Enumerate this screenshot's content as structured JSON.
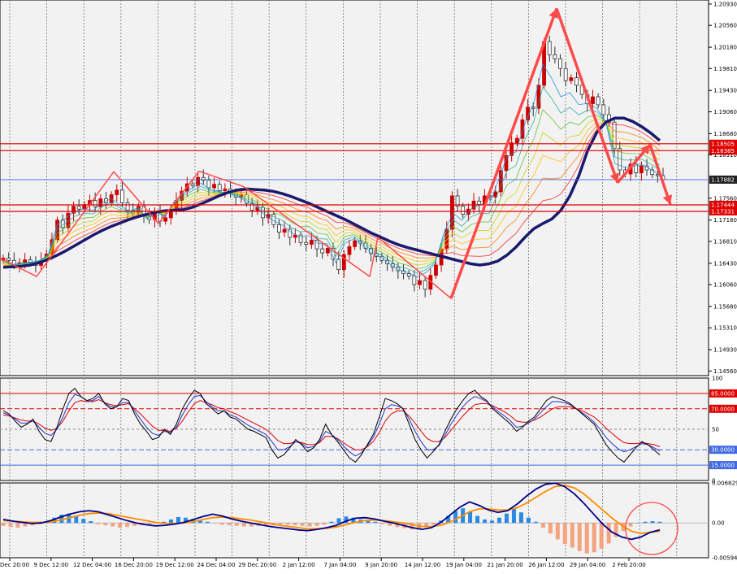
{
  "colors": {
    "background": "#f2f2f2",
    "candle_up": "#cc0000",
    "candle_down": "#333333",
    "ribbon_slow": "#1a1a6e",
    "annotation": "#ff4a4a",
    "level_line": "#e00000",
    "price_line": "#4169e1",
    "stoch_main": "#000000",
    "stoch_red": "#e00000",
    "stoch_blue": "#2233cc",
    "macd_pos": "#2a8ae2",
    "macd_neg": "#f4a37f",
    "macd_main": "#00008b",
    "macd_signal": "#ff8c00"
  },
  "chart_data": [
    {
      "type": "candlestick",
      "panel": "price",
      "y_ticks": [
        "1.20930",
        "1.20560",
        "1.20180",
        "1.19810",
        "1.19430",
        "1.19060",
        "1.18680",
        "1.18310",
        "1.17560",
        "1.17180",
        "1.16810",
        "1.16430",
        "1.16060",
        "1.15680",
        "1.15310",
        "1.14930",
        "1.14560"
      ],
      "ylim": [
        1.1448,
        1.21
      ],
      "level_labels": [
        {
          "value": 1.18505,
          "label": "1.18505",
          "color": "red"
        },
        {
          "value": 1.18385,
          "label": "1.18385",
          "color": "red"
        },
        {
          "value": 1.17882,
          "label": "1.17882",
          "color": "dark"
        },
        {
          "value": 1.17444,
          "label": "1.17444",
          "color": "red"
        },
        {
          "value": 1.17331,
          "label": "1.17331",
          "color": "red"
        }
      ],
      "close_path": [
        1.1652,
        1.1648,
        1.1641,
        1.1644,
        1.1649,
        1.1645,
        1.1639,
        1.1648,
        1.1659,
        1.1684,
        1.1718,
        1.1705,
        1.173,
        1.1742,
        1.1737,
        1.1745,
        1.1752,
        1.1741,
        1.1755,
        1.1748,
        1.1762,
        1.177,
        1.1748,
        1.1735,
        1.173,
        1.1742,
        1.1725,
        1.1719,
        1.1732,
        1.1716,
        1.1722,
        1.1735,
        1.1752,
        1.1768,
        1.1781,
        1.1778,
        1.1792,
        1.1787,
        1.1774,
        1.178,
        1.1769,
        1.1772,
        1.1765,
        1.1758,
        1.1762,
        1.1747,
        1.1735,
        1.174,
        1.1722,
        1.1728,
        1.171,
        1.1697,
        1.1702,
        1.1688,
        1.1692,
        1.1679,
        1.1676,
        1.1683,
        1.1668,
        1.1661,
        1.1669,
        1.165,
        1.1632,
        1.1658,
        1.1672,
        1.1682,
        1.1678,
        1.1669,
        1.166,
        1.1655,
        1.1648,
        1.1642,
        1.1636,
        1.163,
        1.1625,
        1.1621,
        1.1606,
        1.1613,
        1.1598,
        1.1622,
        1.164,
        1.1668,
        1.1702,
        1.176,
        1.1742,
        1.1728,
        1.1737,
        1.1751,
        1.1745,
        1.176,
        1.1758,
        1.1767,
        1.1804,
        1.183,
        1.1852,
        1.186,
        1.1892,
        1.1914,
        1.1912,
        1.1952,
        1.2028,
        1.2005,
        1.1998,
        1.1981,
        1.196,
        1.1965,
        1.1952,
        1.1936,
        1.192,
        1.1932,
        1.1918,
        1.1901,
        1.1888,
        1.1842,
        1.1805,
        1.1798,
        1.1815,
        1.18,
        1.1812,
        1.1805,
        1.1797,
        1.1795,
        1.1788
      ],
      "slow_ma": [
        1.1636,
        1.1637,
        1.1638,
        1.164,
        1.1644,
        1.165,
        1.1657,
        1.1665,
        1.1674,
        1.1683,
        1.1692,
        1.17,
        1.1707,
        1.1713,
        1.1719,
        1.1724,
        1.1728,
        1.1732,
        1.1734,
        1.1735,
        1.1736,
        1.174,
        1.1746,
        1.1753,
        1.176,
        1.1766,
        1.177,
        1.1772,
        1.1771,
        1.177,
        1.1768,
        1.1764,
        1.1759,
        1.1753,
        1.1747,
        1.174,
        1.1733,
        1.1726,
        1.1719,
        1.1711,
        1.1703,
        1.1695,
        1.1688,
        1.1681,
        1.1675,
        1.167,
        1.1666,
        1.1662,
        1.1658,
        1.1654,
        1.165,
        1.1646,
        1.1642,
        1.164,
        1.1642,
        1.1647,
        1.1657,
        1.1671,
        1.1688,
        1.1703,
        1.1712,
        1.172,
        1.1735,
        1.176,
        1.1795,
        1.184,
        1.187,
        1.1888,
        1.1895,
        1.1895,
        1.1889,
        1.188,
        1.1869,
        1.1856
      ],
      "annotation_zigzag_1": [
        [
          0,
          1.1652
        ],
        [
          45,
          1.162
        ],
        [
          140,
          1.1802
        ],
        [
          195,
          1.1712
        ],
        [
          245,
          1.1803
        ],
        [
          300,
          1.1776
        ],
        [
          455,
          1.162
        ],
        [
          465,
          1.1688
        ],
        [
          555,
          1.1582
        ],
        [
          685,
          1.2085
        ],
        [
          760,
          1.1783
        ],
        [
          800,
          1.1849
        ],
        [
          825,
          1.1745
        ]
      ]
    },
    {
      "type": "line",
      "panel": "stochastic",
      "y_ticks": [
        "100",
        "85.0000",
        "70.0000",
        "50",
        "30.0000",
        "15.0000",
        "0"
      ],
      "levels": {
        "high": 85,
        "upper": 70,
        "mid": 50,
        "lower": 30,
        "low": 15
      },
      "main": [
        68,
        65,
        58,
        52,
        55,
        60,
        48,
        40,
        38,
        52,
        70,
        85,
        90,
        82,
        78,
        80,
        85,
        75,
        70,
        72,
        80,
        78,
        65,
        55,
        48,
        40,
        42,
        50,
        45,
        55,
        70,
        80,
        88,
        85,
        75,
        70,
        65,
        68,
        62,
        60,
        55,
        50,
        48,
        45,
        42,
        30,
        22,
        25,
        32,
        40,
        35,
        28,
        32,
        40,
        55,
        45,
        38,
        30,
        22,
        18,
        25,
        35,
        45,
        62,
        80,
        78,
        75,
        70,
        55,
        40,
        30,
        22,
        28,
        35,
        48,
        60,
        70,
        78,
        85,
        88,
        82,
        78,
        70,
        65,
        60,
        55,
        48,
        52,
        58,
        62,
        70,
        78,
        82,
        80,
        78,
        75,
        70,
        65,
        60,
        55,
        45,
        35,
        28,
        22,
        18,
        25,
        32,
        38,
        35,
        30,
        25
      ],
      "blue": [
        66,
        64,
        60,
        56,
        56,
        58,
        52,
        46,
        44,
        50,
        62,
        76,
        84,
        82,
        78,
        78,
        82,
        76,
        72,
        72,
        76,
        76,
        68,
        60,
        52,
        46,
        44,
        48,
        47,
        52,
        64,
        74,
        82,
        83,
        77,
        72,
        68,
        68,
        64,
        62,
        58,
        54,
        51,
        48,
        45,
        38,
        30,
        30,
        33,
        38,
        36,
        32,
        33,
        38,
        48,
        45,
        40,
        34,
        28,
        24,
        27,
        34,
        42,
        55,
        70,
        74,
        73,
        70,
        60,
        48,
        38,
        30,
        30,
        34,
        44,
        55,
        64,
        72,
        78,
        82,
        80,
        77,
        72,
        67,
        63,
        58,
        52,
        53,
        56,
        60,
        66,
        72,
        77,
        77,
        76,
        74,
        70,
        66,
        62,
        57,
        50,
        42,
        36,
        31,
        28,
        30,
        33,
        36,
        35,
        32,
        29
      ],
      "red": [
        64,
        63,
        61,
        59,
        58,
        58,
        55,
        51,
        49,
        51,
        58,
        68,
        76,
        78,
        77,
        77,
        79,
        76,
        74,
        73,
        74,
        75,
        70,
        65,
        59,
        53,
        49,
        49,
        48,
        51,
        58,
        67,
        75,
        78,
        76,
        74,
        71,
        70,
        67,
        65,
        62,
        59,
        56,
        53,
        50,
        45,
        39,
        36,
        36,
        38,
        37,
        35,
        35,
        37,
        43,
        43,
        41,
        37,
        33,
        30,
        30,
        33,
        38,
        47,
        58,
        65,
        68,
        68,
        63,
        56,
        48,
        41,
        38,
        38,
        42,
        49,
        56,
        63,
        69,
        74,
        75,
        75,
        73,
        70,
        67,
        63,
        58,
        57,
        57,
        59,
        62,
        66,
        70,
        72,
        72,
        72,
        70,
        68,
        65,
        62,
        57,
        51,
        46,
        41,
        37,
        36,
        36,
        37,
        36,
        35,
        33
      ]
    },
    {
      "type": "bar",
      "panel": "macd",
      "y_ticks": [
        "0.006829",
        "0.00",
        "-0.005941"
      ],
      "ylim": [
        -0.005941,
        0.006829
      ],
      "histogram": [
        -0.0005,
        -0.0007,
        -0.0008,
        -0.0006,
        -0.0004,
        -0.0002,
        0.0003,
        0.0009,
        0.0014,
        0.0016,
        0.0012,
        0.0007,
        0.0003,
        -0.0002,
        -0.0004,
        -0.0006,
        -0.0008,
        -0.0007,
        -0.0005,
        -0.0004,
        -0.0003,
        -0.0001,
        0.0002,
        0.0006,
        0.001,
        0.0009,
        0.0006,
        0.0004,
        0.0002,
        -0.0001,
        -0.0003,
        -0.0004,
        -0.0005,
        -0.0006,
        -0.0006,
        -0.0005,
        -0.0004,
        -0.0004,
        -0.0003,
        -0.0003,
        -0.0004,
        -0.0005,
        -0.0006,
        -0.0005,
        -0.0003,
        0.0002,
        0.0008,
        0.0011,
        0.0009,
        0.0006,
        0.0004,
        0.0002,
        -0.0002,
        -0.0005,
        -0.0007,
        -0.0009,
        -0.0011,
        -0.001,
        -0.0006,
        -0.0003,
        0.0004,
        0.0012,
        0.002,
        0.0025,
        0.0019,
        0.0012,
        0.0006,
        0.0004,
        0.0009,
        0.0016,
        0.0024,
        0.0018,
        0.0009,
        0.0002,
        -0.0008,
        -0.0018,
        -0.0028,
        -0.0036,
        -0.0042,
        -0.0048,
        -0.0052,
        -0.005,
        -0.0044,
        -0.0035,
        -0.0024,
        -0.0014,
        -0.0006,
        0.0,
        0.0002,
        0.0003,
        0.0002
      ],
      "main": [
        0.0006,
        0.0003,
        0.0001,
        -0.0001,
        0.0,
        0.0004,
        0.001,
        0.0015,
        0.0019,
        0.0021,
        0.0019,
        0.0014,
        0.0009,
        0.0004,
        0.0,
        -0.0003,
        -0.0005,
        -0.0004,
        -0.0002,
        0.0001,
        0.0006,
        0.0011,
        0.0015,
        0.0012,
        0.0007,
        0.0003,
        0.0,
        -0.0003,
        -0.0006,
        -0.0008,
        -0.001,
        -0.0012,
        -0.0013,
        -0.0011,
        -0.0008,
        -0.0004,
        0.0003,
        0.0008,
        0.0009,
        0.0007,
        0.0003,
        0.0,
        -0.0004,
        -0.0008,
        -0.0011,
        -0.0008,
        0.0001,
        0.0014,
        0.0027,
        0.0036,
        0.003,
        0.0022,
        0.0018,
        0.0021,
        0.0032,
        0.0046,
        0.0058,
        0.0066,
        0.0068,
        0.0062,
        0.005,
        0.0034,
        0.0016,
        -0.0002,
        -0.0016,
        -0.0024,
        -0.0028,
        -0.0024,
        -0.0016,
        -0.0012
      ],
      "signal": [
        0.0004,
        0.0003,
        0.0002,
        0.0001,
        0.0001,
        0.0002,
        0.0005,
        0.0009,
        0.0013,
        0.0016,
        0.0017,
        0.0016,
        0.0013,
        0.001,
        0.0007,
        0.0004,
        0.0001,
        -0.0001,
        -0.0001,
        0.0,
        0.0002,
        0.0006,
        0.0009,
        0.001,
        0.0009,
        0.0007,
        0.0005,
        0.0002,
        -0.0001,
        -0.0004,
        -0.0006,
        -0.0008,
        -0.001,
        -0.001,
        -0.0009,
        -0.0007,
        -0.0003,
        0.0001,
        0.0004,
        0.0005,
        0.0004,
        0.0002,
        0.0,
        -0.0003,
        -0.0006,
        -0.0006,
        -0.0004,
        0.0002,
        0.001,
        0.0019,
        0.0024,
        0.0024,
        0.0022,
        0.0022,
        0.0026,
        0.0034,
        0.0044,
        0.0054,
        0.0062,
        0.0064,
        0.006,
        0.005,
        0.0036,
        0.0022,
        0.0008,
        -0.0004,
        -0.0014,
        -0.0018,
        -0.0016,
        -0.0014
      ]
    }
  ],
  "x_labels": [
    "Dec 20:00",
    "9 Dec 12:00",
    "12 Dec 04:00",
    "16 Dec 20:00",
    "19 Dec 12:00",
    "24 Dec 04:00",
    "29 Dec 20:00",
    "2 Jan 12:00",
    "7 Jan 04:00",
    "9 Jan 20:00",
    "14 Jan 12:00",
    "19 Jan 04:00",
    "21 Jan 20:00",
    "26 Jan 12:00",
    "29 Jan 04:00",
    "2 Feb 20:00"
  ]
}
